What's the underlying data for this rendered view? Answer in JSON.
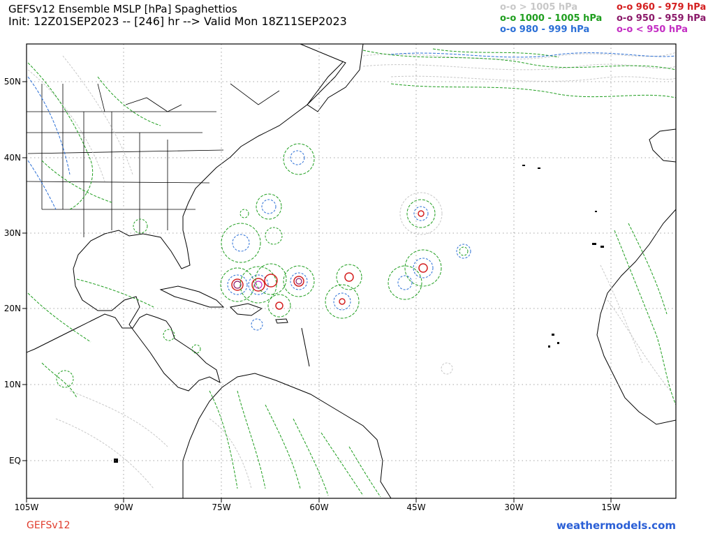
{
  "header": {
    "title": "GEFSv12 Ensemble MSLP [hPa] Spaghettios",
    "subtitle": "Init: 12Z01SEP2023 -- [246] hr --> Valid Mon 18Z11SEP2023"
  },
  "legend": {
    "left": [
      {
        "label": "o-o > 1005 hPa",
        "color": "#c8c8c8"
      },
      {
        "label": "o-o 1000 - 1005 hPa",
        "color": "#1f9e1f"
      },
      {
        "label": "o-o 980 - 999 hPa",
        "color": "#2b6fd6"
      }
    ],
    "right": [
      {
        "label": "o-o 960 - 979 hPa",
        "color": "#d42020"
      },
      {
        "label": "o-o 950 - 959 hPa",
        "color": "#8b1a6a"
      },
      {
        "label": "o-o < 950 hPa",
        "color": "#c42ec4"
      }
    ]
  },
  "axes": {
    "lat_labels": [
      "50N",
      "40N",
      "30N",
      "20N",
      "10N",
      "EQ"
    ],
    "lon_labels": [
      "105W",
      "90W",
      "75W",
      "60W",
      "45W",
      "30W",
      "15W"
    ]
  },
  "footer": {
    "model": "GEFSv12",
    "site": "weathermodels.com"
  }
}
